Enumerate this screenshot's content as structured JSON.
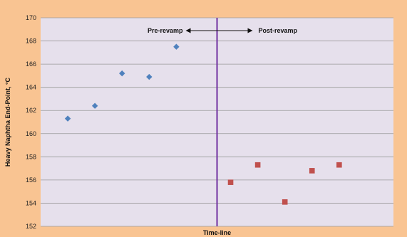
{
  "chart_data": {
    "type": "scatter",
    "title": "",
    "xlabel": "Time-line",
    "ylabel": "Heavy Naphtha End-Point, °C",
    "ylim": [
      152,
      170
    ],
    "yticks": [
      152,
      154,
      156,
      158,
      160,
      162,
      164,
      166,
      168,
      170
    ],
    "xlim": [
      0,
      13
    ],
    "grid": "horizontal",
    "divider_x": 6.5,
    "series": [
      {
        "marker": "diamond",
        "color": "#4f81bd",
        "x": [
          1,
          2,
          3,
          4,
          5
        ],
        "y": [
          161.3,
          162.4,
          165.2,
          164.9,
          167.5
        ]
      },
      {
        "marker": "square",
        "color": "#c0504d",
        "x": [
          7,
          8,
          9,
          10,
          11
        ],
        "y": [
          155.8,
          157.3,
          154.1,
          156.8,
          157.3
        ]
      }
    ],
    "annotations": {
      "left": "Pre-revamp",
      "right": "Post-revamp"
    },
    "colors": {
      "background": "#f9c492",
      "plot_area": "#e6e0ec",
      "grid": "#9a9a9a",
      "divider": "#7030a0"
    }
  }
}
